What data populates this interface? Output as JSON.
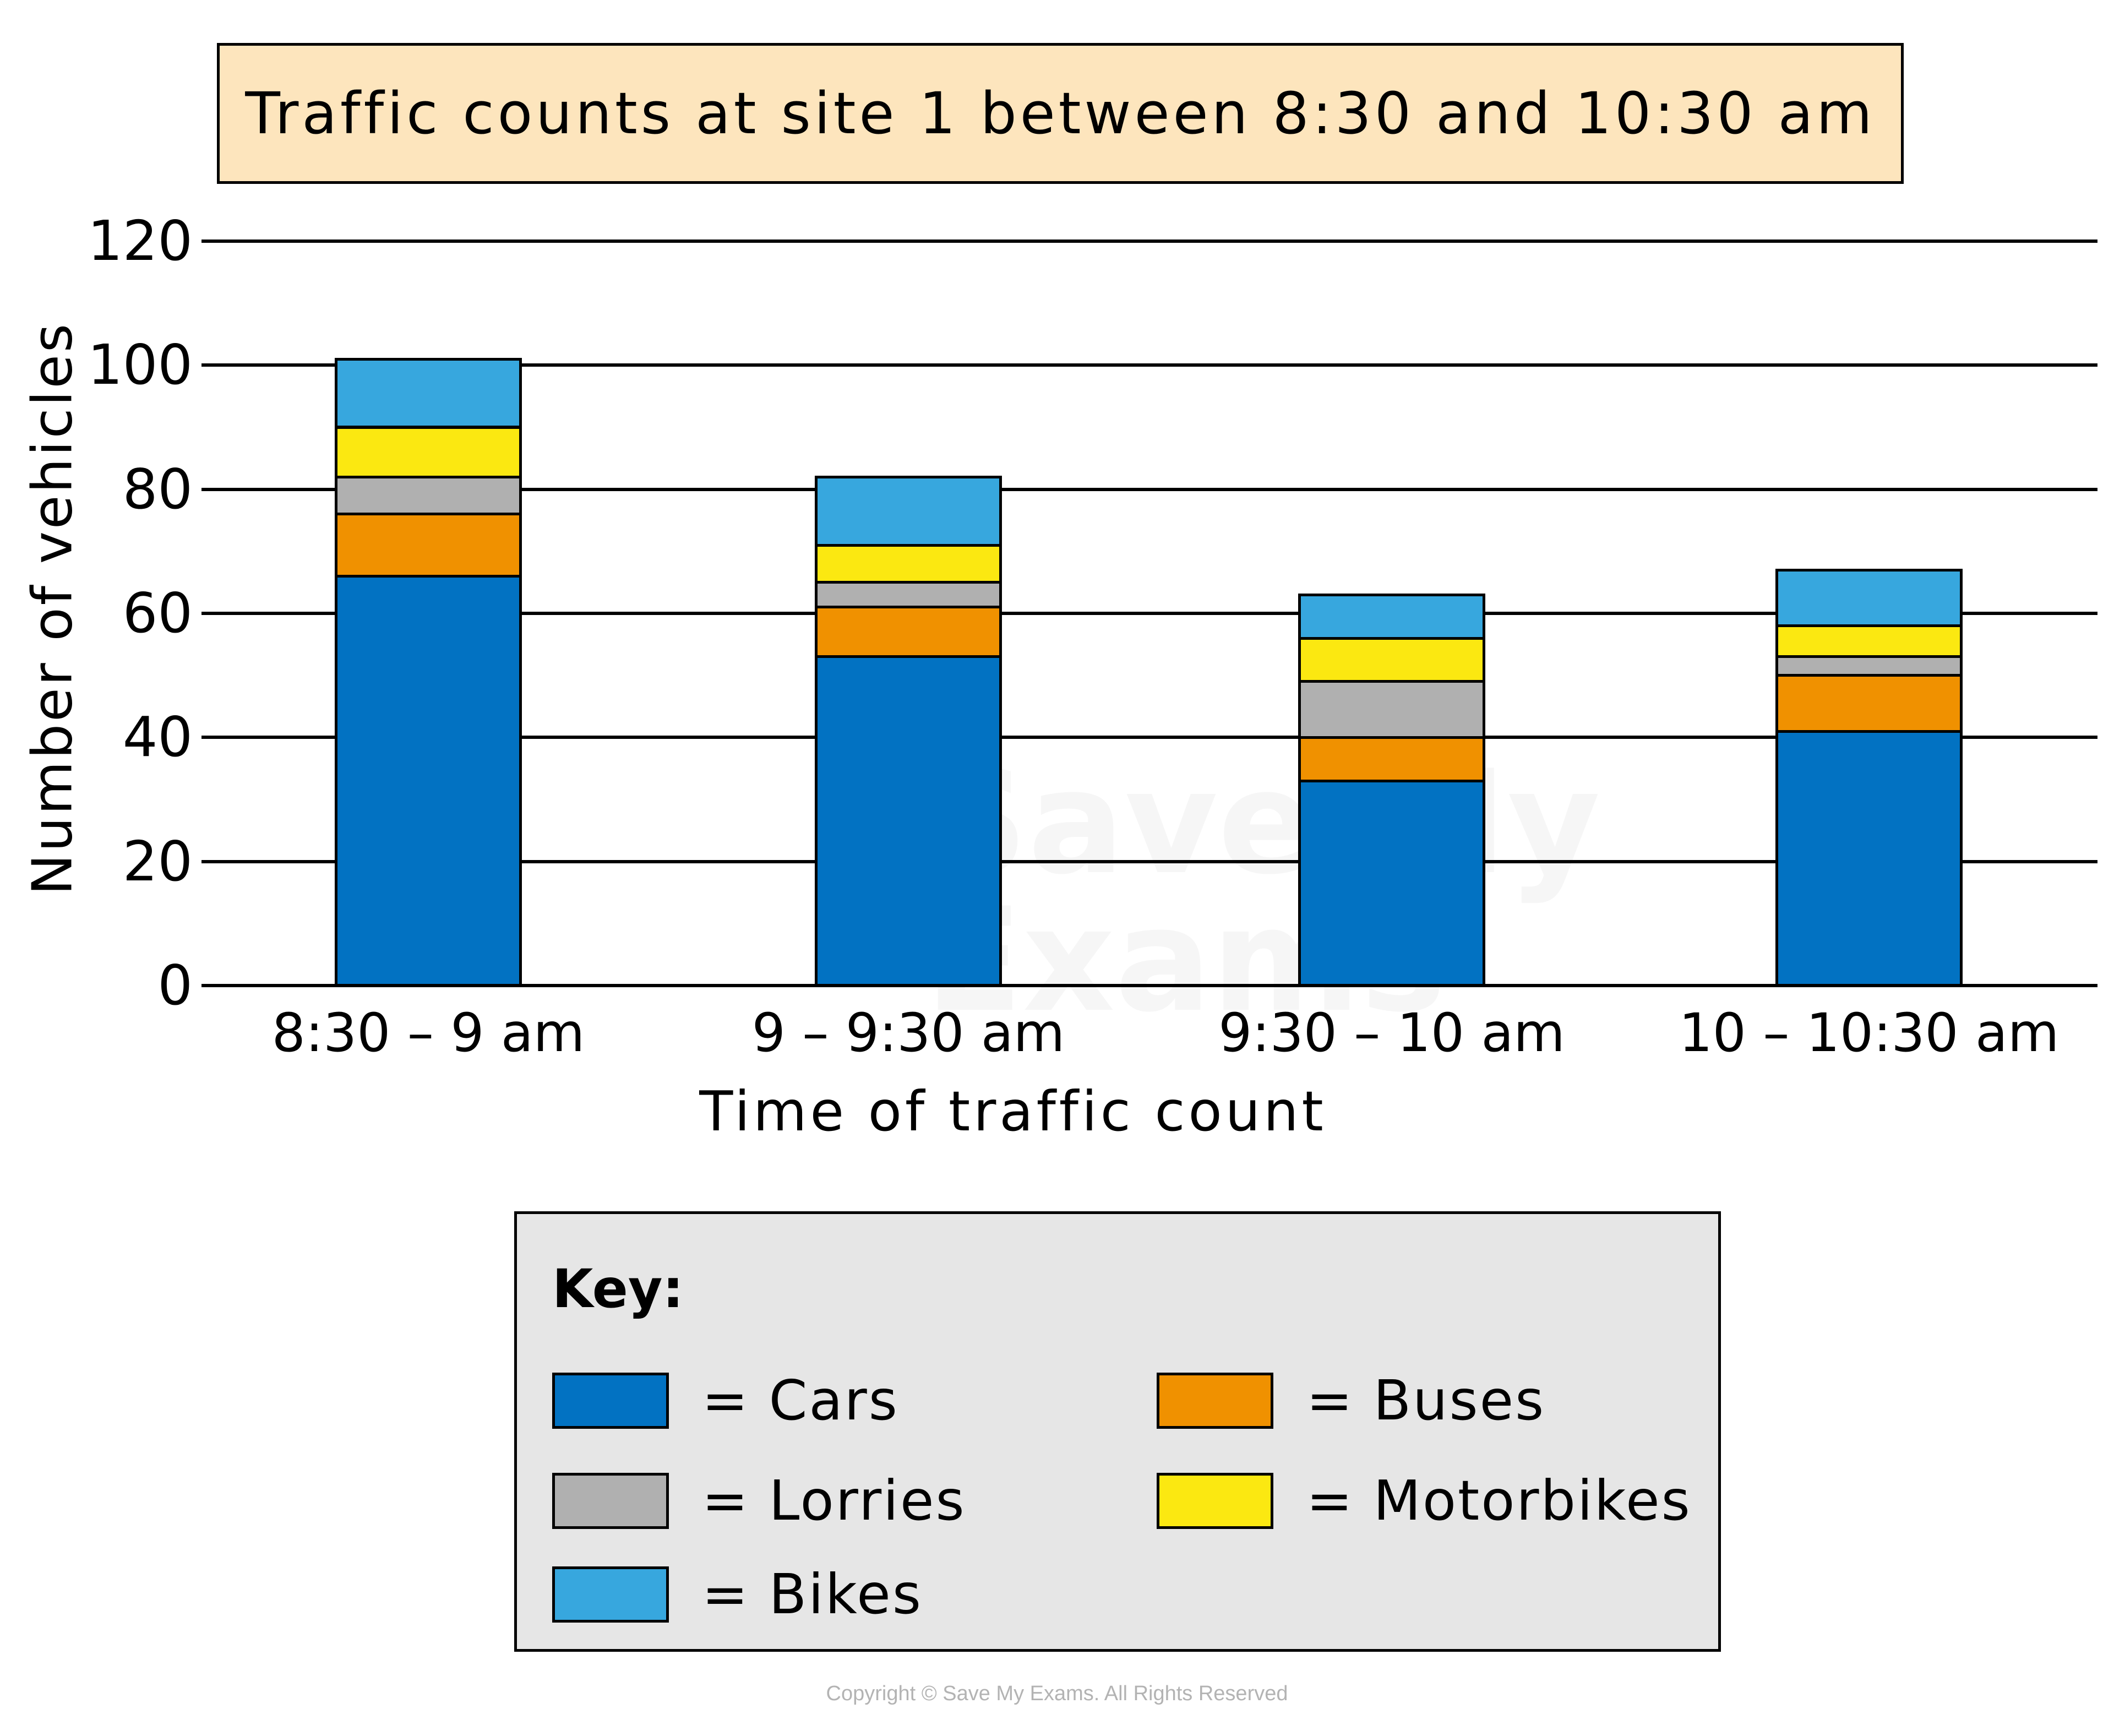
{
  "chart_data": {
    "type": "bar",
    "stacked": true,
    "title": "Traffic counts at site 1 between 8:30 and 10:30 am",
    "xlabel": "Time of traffic count",
    "ylabel": "Number of vehicles",
    "ylim": [
      0,
      120
    ],
    "yticks": [
      "0",
      "20",
      "40",
      "60",
      "80",
      "100",
      "120"
    ],
    "grid": true,
    "legend_position": "bottom",
    "categories": [
      "8:30 – 9 am",
      "9 – 9:30 am",
      "9:30 – 10 am",
      "10 – 10:30 am"
    ],
    "series": [
      {
        "name": "Cars",
        "color": "#0272c2",
        "values": [
          66,
          53,
          33,
          41
        ]
      },
      {
        "name": "Buses",
        "color": "#f09100",
        "values": [
          10,
          8,
          7,
          9
        ]
      },
      {
        "name": "Lorries",
        "color": "#b0b0b0",
        "values": [
          6,
          4,
          9,
          3
        ]
      },
      {
        "name": "Motorbikes",
        "color": "#fbe811",
        "values": [
          8,
          6,
          7,
          5
        ]
      },
      {
        "name": "Bikes",
        "color": "#37a7de",
        "values": [
          11,
          11,
          7,
          9
        ]
      }
    ],
    "totals": [
      101,
      82,
      63,
      67
    ]
  },
  "legend": {
    "title": "Key:",
    "items": [
      {
        "label": "= Cars"
      },
      {
        "label": "= Buses"
      },
      {
        "label": "= Lorries"
      },
      {
        "label": "= Motorbikes"
      },
      {
        "label": "= Bikes"
      }
    ]
  },
  "watermark": {
    "line1": "Save My",
    "line2": "Exams"
  },
  "footer": {
    "copyright": "Copyright © Save My Exams. All Rights Reserved"
  }
}
